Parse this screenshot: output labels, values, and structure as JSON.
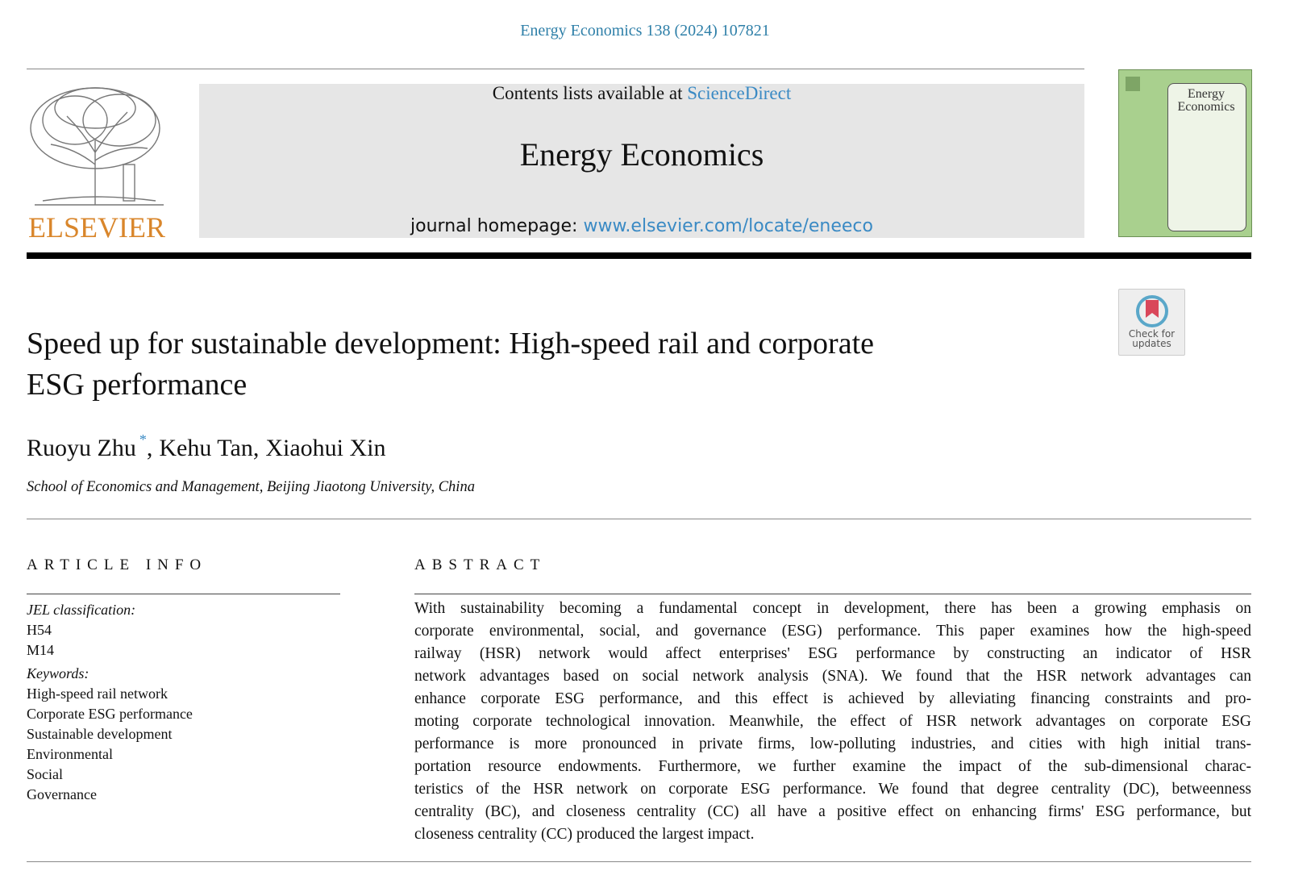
{
  "header": {
    "citation": "Energy Economics 138 (2024) 107821",
    "contents_prefix": "Contents lists available at",
    "contents_link": "ScienceDirect",
    "journal": "Energy Economics",
    "homepage_prefix": "journal homepage:",
    "homepage_link": "www.elsevier.com/locate/eneeco",
    "publisher": "ELSEVIER",
    "cover_title": "Energy Economics",
    "update_badge": "Check for updates"
  },
  "article": {
    "title_lines": [
      "Speed up for sustainable development: High-speed rail and corporate",
      "ESG performance"
    ],
    "authors": [
      {
        "name": "Ruoyu Zhu",
        "note": "*"
      },
      {
        "name": "Kehu Tan"
      },
      {
        "name": "Xiaohui Xin"
      }
    ],
    "author_separator": ",",
    "affiliation": "School of Economics and Management, Beijing Jiaotong University, China"
  },
  "article_info": {
    "heading": "ARTICLE INFO",
    "jel_heading": "JEL classification:",
    "jel": [
      "H54",
      "M14"
    ],
    "keywords_heading": "Keywords:",
    "keywords": [
      "High-speed rail network",
      "Corporate ESG performance",
      "Sustainable development",
      "Environmental",
      "Social",
      "Governance"
    ]
  },
  "abstract": {
    "heading": "ABSTRACT",
    "lines": [
      "With sustainability becoming a fundamental concept in development, there has been a growing emphasis on",
      "corporate environmental, social, and governance (ESG) performance. This paper examines how the high-speed",
      "railway (HSR) network would affect enterprises' ESG performance by constructing an indicator of HSR",
      "network advantages based on social network analysis (SNA). We found that the HSR network advantages can",
      "enhance corporate ESG performance, and this effect is achieved by alleviating financing constraints and pro-",
      "moting corporate technological innovation. Meanwhile, the effect of HSR network advantages on corporate ESG",
      "performance is more pronounced in private firms, low-polluting industries, and cities with high initial trans-",
      "portation resource endowments. Furthermore, we further examine the impact of the sub-dimensional charac-",
      "teristics of the HSR network on corporate ESG performance. We found that degree centrality (DC), betweenness",
      "centrality (BC), and closeness centrality (CC) all have a positive effect on enhancing firms' ESG performance, but",
      "closeness centrality (CC) produced the largest impact."
    ]
  }
}
